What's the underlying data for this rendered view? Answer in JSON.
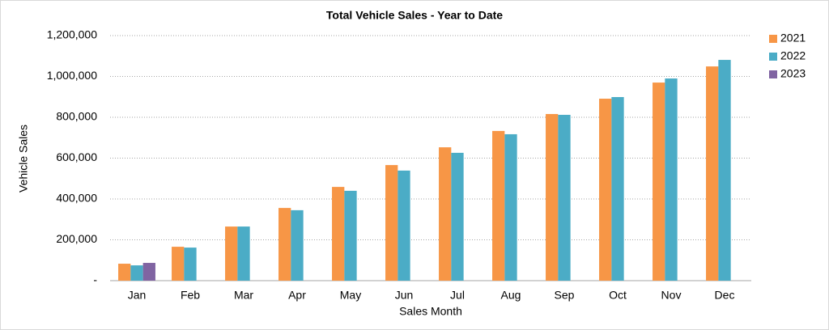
{
  "chart_data": {
    "type": "bar",
    "title": "Total Vehicle Sales - Year to Date",
    "x_label": "Sales Month",
    "y_label": "Vehicle Sales",
    "categories": [
      "Jan",
      "Feb",
      "Mar",
      "Apr",
      "May",
      "Jun",
      "Jul",
      "Aug",
      "Sep",
      "Oct",
      "Nov",
      "Dec"
    ],
    "series": [
      {
        "name": "2021",
        "color": "#f79646",
        "values": [
          83000,
          166000,
          265000,
          356000,
          459000,
          566000,
          653000,
          733000,
          816000,
          891000,
          970000,
          1049000
        ]
      },
      {
        "name": "2022",
        "color": "#4bacc6",
        "values": [
          75000,
          162000,
          265000,
          345000,
          440000,
          539000,
          626000,
          717000,
          812000,
          899000,
          990000,
          1081000
        ]
      },
      {
        "name": "2023",
        "color": "#8064a2",
        "values": [
          87000,
          null,
          null,
          null,
          null,
          null,
          null,
          null,
          null,
          null,
          null,
          null
        ]
      }
    ],
    "ylim": [
      0,
      1200000
    ],
    "yticks": [
      {
        "value": 0,
        "label": "-"
      },
      {
        "value": 200000,
        "label": "200,000"
      },
      {
        "value": 400000,
        "label": "400,000"
      },
      {
        "value": 600000,
        "label": "600,000"
      },
      {
        "value": 800000,
        "label": "800,000"
      },
      {
        "value": 1000000,
        "label": "1,000,000"
      },
      {
        "value": 1200000,
        "label": "1,200,000"
      }
    ],
    "grid": true,
    "legend": "right"
  }
}
